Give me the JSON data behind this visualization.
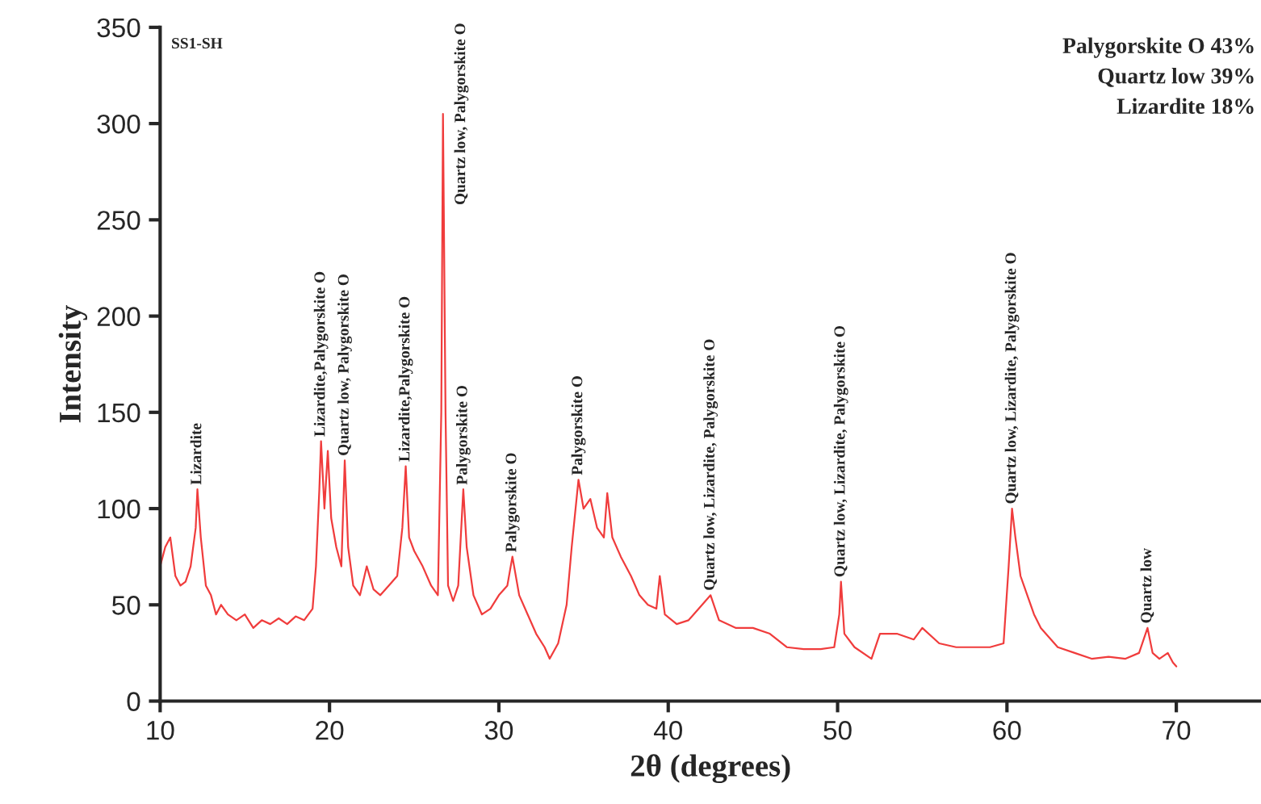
{
  "chart_data": {
    "type": "line",
    "xlabel": "2θ (degrees)",
    "ylabel": "Intensity",
    "xlim": [
      10,
      75
    ],
    "ylim": [
      0,
      350
    ],
    "xticks": [
      10,
      20,
      30,
      40,
      50,
      60,
      70
    ],
    "yticks": [
      0,
      50,
      100,
      150,
      200,
      250,
      300,
      350
    ],
    "grid": false,
    "legend": false,
    "series": [
      {
        "color": "#f03c3c",
        "x": [
          10.0,
          10.3,
          10.6,
          10.9,
          11.2,
          11.5,
          11.8,
          12.1,
          12.2,
          12.4,
          12.7,
          13.0,
          13.3,
          13.6,
          14.0,
          14.5,
          15.0,
          15.5,
          16.0,
          16.5,
          17.0,
          17.5,
          18.0,
          18.5,
          19.0,
          19.2,
          19.4,
          19.5,
          19.7,
          19.9,
          20.1,
          20.4,
          20.7,
          20.9,
          21.1,
          21.4,
          21.8,
          22.2,
          22.6,
          23.0,
          23.5,
          24.0,
          24.3,
          24.5,
          24.7,
          25.0,
          25.5,
          26.0,
          26.4,
          26.6,
          26.7,
          26.85,
          27.0,
          27.3,
          27.6,
          27.9,
          28.1,
          28.5,
          29.0,
          29.5,
          30.0,
          30.5,
          30.8,
          31.2,
          31.7,
          32.2,
          32.7,
          33.0,
          33.5,
          34.0,
          34.3,
          34.7,
          35.0,
          35.4,
          35.8,
          36.2,
          36.4,
          36.7,
          37.2,
          37.8,
          38.3,
          38.8,
          39.3,
          39.5,
          39.8,
          40.5,
          41.2,
          42.0,
          42.5,
          43.0,
          44.0,
          45.0,
          46.0,
          47.0,
          48.0,
          49.0,
          49.8,
          50.1,
          50.2,
          50.4,
          51.0,
          52.0,
          52.5,
          53.5,
          54.5,
          55.0,
          56.0,
          57.0,
          58.0,
          59.0,
          59.8,
          60.1,
          60.3,
          60.5,
          60.8,
          61.2,
          61.6,
          62.0,
          63.0,
          64.0,
          65.0,
          66.0,
          67.0,
          67.8,
          68.3,
          68.6,
          69.0,
          69.5,
          69.8,
          70.0
        ],
        "values": [
          70,
          80,
          85,
          65,
          60,
          62,
          70,
          90,
          110,
          85,
          60,
          55,
          45,
          50,
          45,
          42,
          45,
          38,
          42,
          40,
          43,
          40,
          44,
          42,
          48,
          70,
          110,
          135,
          100,
          130,
          95,
          80,
          70,
          125,
          80,
          60,
          55,
          70,
          58,
          55,
          60,
          65,
          90,
          122,
          85,
          78,
          70,
          60,
          55,
          150,
          305,
          150,
          60,
          52,
          60,
          110,
          80,
          55,
          45,
          48,
          55,
          60,
          75,
          55,
          45,
          35,
          28,
          22,
          30,
          50,
          80,
          115,
          100,
          105,
          90,
          85,
          108,
          85,
          75,
          65,
          55,
          50,
          48,
          65,
          45,
          40,
          42,
          50,
          55,
          42,
          38,
          38,
          35,
          28,
          27,
          27,
          28,
          45,
          62,
          35,
          28,
          22,
          35,
          35,
          32,
          38,
          30,
          28,
          28,
          28,
          30,
          70,
          100,
          85,
          65,
          55,
          45,
          38,
          28,
          25,
          22,
          23,
          22,
          25,
          38,
          25,
          22,
          25,
          20,
          18
        ]
      }
    ],
    "annotations": [
      "SS1-SH",
      "Palygorskite O 43%",
      "Quartz low 39%",
      "Lizardite 18%",
      {
        "text": "Lizardite",
        "x": 12.2,
        "y": 110
      },
      {
        "text": "Lizardite,Palygorskite O",
        "x": 19.5,
        "y": 135
      },
      {
        "text": "Quartz low, Palygorskite O",
        "x": 20.9,
        "y": 125
      },
      {
        "text": "Lizardite,Palygorskite O",
        "x": 24.5,
        "y": 122
      },
      {
        "text": "Quartz low, Palygorskite O",
        "x": 26.7,
        "y": 305
      },
      {
        "text": "Palygorskite O",
        "x": 27.9,
        "y": 110
      },
      {
        "text": "Palygorskite O",
        "x": 30.8,
        "y": 75
      },
      {
        "text": "Palygorskite O",
        "x": 34.7,
        "y": 115
      },
      {
        "text": "Quartz low, Lizardite, Palygorskite O",
        "x": 42.5,
        "y": 55
      },
      {
        "text": "Quartz low, Lizardite, Palygorskite O",
        "x": 50.2,
        "y": 62
      },
      {
        "text": "Quartz low, Lizardite, Palygorskite O",
        "x": 60.3,
        "y": 100
      },
      {
        "text": "Quartz low",
        "x": 68.3,
        "y": 38
      }
    ]
  }
}
